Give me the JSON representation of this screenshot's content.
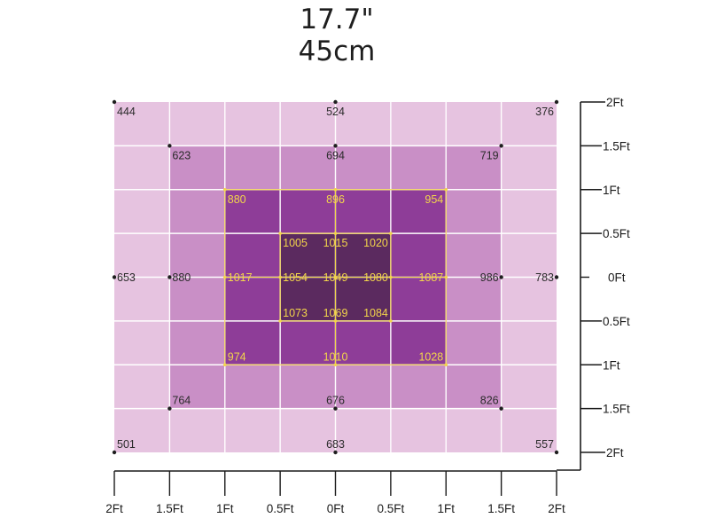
{
  "title": {
    "line1": "17.7\"",
    "line2": "45cm"
  },
  "chart_data": {
    "type": "heatmap",
    "title": "17.7\" 45cm",
    "xlabel": "",
    "ylabel": "",
    "x_ticks": [
      "2Ft",
      "1.5Ft",
      "1Ft",
      "0.5Ft",
      "0Ft",
      "0.5Ft",
      "1Ft",
      "1.5Ft",
      "2Ft"
    ],
    "y_ticks": [
      "2Ft",
      "1.5Ft",
      "1Ft",
      "0.5Ft",
      "0Ft",
      "0.5Ft",
      "1Ft",
      "1.5Ft",
      "2Ft"
    ],
    "xlim": [
      -2,
      2
    ],
    "ylim": [
      -2,
      2
    ],
    "grid": true,
    "cell_levels": [
      [
        1,
        1,
        1,
        1,
        1,
        1,
        1,
        1
      ],
      [
        1,
        2,
        2,
        2,
        2,
        2,
        2,
        1
      ],
      [
        1,
        2,
        3,
        3,
        3,
        3,
        2,
        1
      ],
      [
        1,
        2,
        3,
        4,
        4,
        3,
        2,
        1
      ],
      [
        1,
        2,
        3,
        4,
        4,
        3,
        2,
        1
      ],
      [
        1,
        2,
        3,
        3,
        3,
        3,
        2,
        1
      ],
      [
        1,
        2,
        2,
        2,
        2,
        2,
        2,
        1
      ],
      [
        1,
        1,
        1,
        1,
        1,
        1,
        1,
        1
      ]
    ],
    "level_colors": [
      "#e6c3e0",
      "#c98fc6",
      "#8e3d98",
      "#5b2a5f"
    ],
    "point_colors": {
      "outer": "#2a2a2a",
      "inner": "#f3d64a"
    },
    "points": [
      {
        "x": -2,
        "y": 2,
        "value": 444,
        "zone": "outer"
      },
      {
        "x": 0,
        "y": 2,
        "value": 524,
        "zone": "outer"
      },
      {
        "x": 2,
        "y": 2,
        "value": 376,
        "zone": "outer"
      },
      {
        "x": -1.5,
        "y": 1.5,
        "value": 623,
        "zone": "outer"
      },
      {
        "x": 0,
        "y": 1.5,
        "value": 694,
        "zone": "outer"
      },
      {
        "x": 1.5,
        "y": 1.5,
        "value": 719,
        "zone": "outer"
      },
      {
        "x": -1,
        "y": 1,
        "value": 880,
        "zone": "inner"
      },
      {
        "x": 0,
        "y": 1,
        "value": 896,
        "zone": "inner"
      },
      {
        "x": 1,
        "y": 1,
        "value": 954,
        "zone": "inner"
      },
      {
        "x": -0.5,
        "y": 0.5,
        "value": 1005,
        "zone": "inner"
      },
      {
        "x": 0,
        "y": 0.5,
        "value": 1015,
        "zone": "inner"
      },
      {
        "x": 0.5,
        "y": 0.5,
        "value": 1020,
        "zone": "inner"
      },
      {
        "x": -2,
        "y": 0,
        "value": 653,
        "zone": "outer"
      },
      {
        "x": -1.5,
        "y": 0,
        "value": 880,
        "zone": "outer"
      },
      {
        "x": -1,
        "y": 0,
        "value": 1017,
        "zone": "inner"
      },
      {
        "x": -0.5,
        "y": 0,
        "value": 1054,
        "zone": "inner"
      },
      {
        "x": 0,
        "y": 0,
        "value": 1049,
        "zone": "inner"
      },
      {
        "x": 0.5,
        "y": 0,
        "value": 1080,
        "zone": "inner"
      },
      {
        "x": 1,
        "y": 0,
        "value": 1087,
        "zone": "inner"
      },
      {
        "x": 1.5,
        "y": 0,
        "value": 986,
        "zone": "outer"
      },
      {
        "x": 2,
        "y": 0,
        "value": 783,
        "zone": "outer"
      },
      {
        "x": -0.5,
        "y": -0.5,
        "value": 1073,
        "zone": "inner"
      },
      {
        "x": 0,
        "y": -0.5,
        "value": 1069,
        "zone": "inner"
      },
      {
        "x": 0.5,
        "y": -0.5,
        "value": 1084,
        "zone": "inner"
      },
      {
        "x": -1,
        "y": -1,
        "value": 974,
        "zone": "inner"
      },
      {
        "x": 0,
        "y": -1,
        "value": 1010,
        "zone": "inner"
      },
      {
        "x": 1,
        "y": -1,
        "value": 1028,
        "zone": "inner"
      },
      {
        "x": -1.5,
        "y": -1.5,
        "value": 764,
        "zone": "outer"
      },
      {
        "x": 0,
        "y": -1.5,
        "value": 676,
        "zone": "outer"
      },
      {
        "x": 1.5,
        "y": -1.5,
        "value": 826,
        "zone": "outer"
      },
      {
        "x": -2,
        "y": -2,
        "value": 501,
        "zone": "outer"
      },
      {
        "x": 0,
        "y": -2,
        "value": 683,
        "zone": "outer"
      },
      {
        "x": 2,
        "y": -2,
        "value": 557,
        "zone": "outer"
      }
    ]
  }
}
